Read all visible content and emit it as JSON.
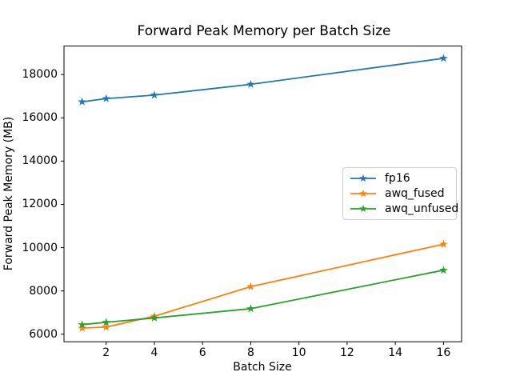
{
  "chart_data": {
    "type": "line",
    "title": "Forward Peak Memory per Batch Size",
    "xlabel": "Batch Size",
    "ylabel": "Forward Peak Memory (MB)",
    "x": [
      1,
      2,
      4,
      8,
      16
    ],
    "series": [
      {
        "name": "fp16",
        "color": "#1f77b4",
        "values": [
          16740,
          16890,
          17050,
          17550,
          18750
        ]
      },
      {
        "name": "awq_fused",
        "color": "#ff7f0e",
        "values": [
          6280,
          6330,
          6830,
          8200,
          10160
        ]
      },
      {
        "name": "awq_unfused",
        "color": "#2ca02c",
        "values": [
          6440,
          6550,
          6750,
          7180,
          8960
        ]
      }
    ],
    "x_tick_values": [
      2,
      4,
      6,
      8,
      10,
      12,
      14,
      16
    ],
    "x_tick_labels": [
      "2",
      "4",
      "6",
      "8",
      "10",
      "12",
      "14",
      "16"
    ],
    "y_tick_values": [
      6000,
      8000,
      10000,
      12000,
      14000,
      16000,
      18000
    ],
    "y_tick_labels": [
      "6000",
      "8000",
      "10000",
      "12000",
      "14000",
      "16000",
      "18000"
    ],
    "xlim": [
      0.25,
      16.75
    ],
    "ylim": [
      5650,
      19320
    ],
    "marker": "star",
    "grid": false,
    "legend": {
      "entries": [
        "fp16",
        "awq_fused",
        "awq_unfused"
      ],
      "position": "center right"
    },
    "axis_color": "#000000",
    "background": "#ffffff"
  }
}
